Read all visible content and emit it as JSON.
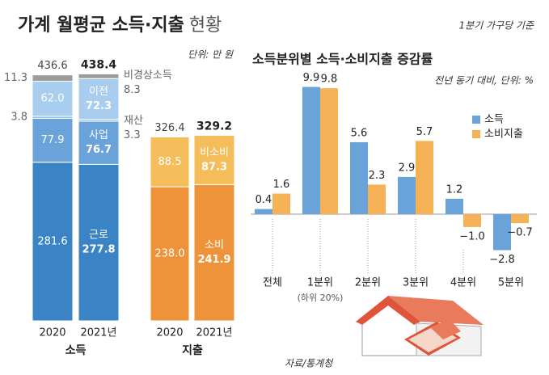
{
  "chart_data": [
    {
      "type": "stacked-bar",
      "title": "가계 월평균 소득·지출",
      "title_extra": "현황",
      "note": "단위: 만 원",
      "groups": [
        {
          "name": "소득",
          "categories": [
            "2020",
            "2021년"
          ],
          "series": [
            {
              "name": "근로",
              "color": "#3a84c6",
              "values": [
                281.6,
                277.8
              ]
            },
            {
              "name": "사업",
              "color": "#6aa3da",
              "values": [
                77.9,
                76.7
              ]
            },
            {
              "name": "재산",
              "color": "#8fbde8",
              "values": [
                3.8,
                3.3
              ]
            },
            {
              "name": "이전",
              "color": "#a8cdef",
              "values": [
                62.0,
                72.3
              ],
              "value_labels": [
                "62.0",
                "72.3"
              ]
            },
            {
              "name": "비경상소득",
              "color": "#9c9c9c",
              "values": [
                11.3,
                8.3
              ]
            }
          ],
          "totals": [
            436.6,
            438.4
          ]
        },
        {
          "name": "지출",
          "categories": [
            "2020",
            "2021년"
          ],
          "series": [
            {
              "name": "소비",
              "color": "#ef933a",
              "values": [
                238.0,
                241.9
              ],
              "value_labels": [
                "238.0",
                "241.9"
              ]
            },
            {
              "name": "비소비",
              "color": "#f5bd5a",
              "values": [
                88.5,
                87.3
              ]
            }
          ],
          "totals": [
            326.4,
            329.2
          ]
        }
      ]
    },
    {
      "type": "bar",
      "title": "소득분위별 소득·소비지출 증감률",
      "note": "전년 동기 대비, 단위: %",
      "categories": [
        "전체",
        "1분위",
        "2분위",
        "3분위",
        "4분위",
        "5분위"
      ],
      "category_notes": [
        null,
        "(하위 20%)",
        null,
        null,
        null,
        null
      ],
      "series": [
        {
          "name": "소득",
          "color": "#6aa3da",
          "values": [
            0.4,
            9.9,
            5.6,
            2.9,
            1.2,
            -2.8
          ],
          "value_labels": [
            "0.4",
            "9.9",
            "5.6",
            "2.9",
            "1.2",
            "−2.8"
          ]
        },
        {
          "name": "소비지출",
          "color": "#f5b155",
          "values": [
            1.6,
            9.8,
            2.3,
            5.7,
            -1.0,
            -0.7
          ],
          "value_labels": [
            "1.6",
            "9.8",
            "2.3",
            "5.7",
            "−1.0",
            "−0.7"
          ]
        }
      ]
    }
  ],
  "basis": "1분기 가구당 기준",
  "source": "자료/통계청"
}
